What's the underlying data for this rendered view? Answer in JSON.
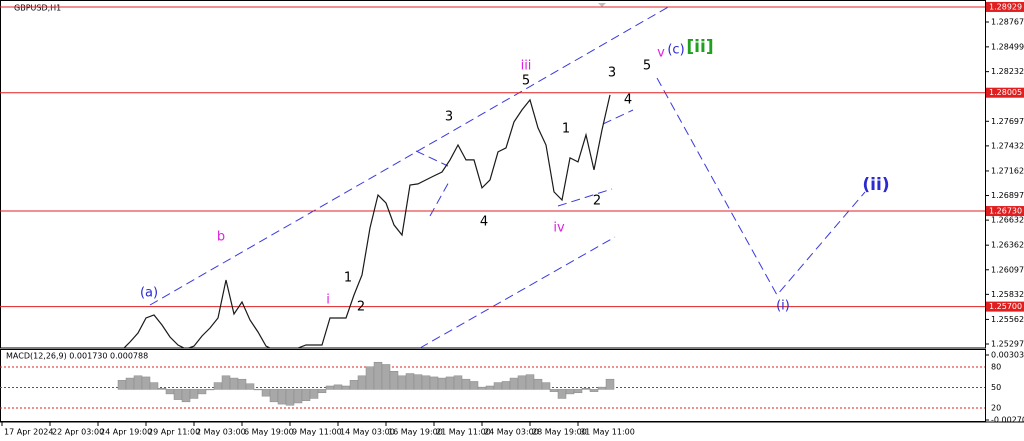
{
  "chart_data": [
    {
      "type": "line",
      "title": "GBPUSD,H1",
      "xlim": [
        -15.25,
        107.875
      ],
      "ylim": [
        1.25254,
        1.29004
      ],
      "xticks": [
        {
          "value": -15,
          "label": "17 Apr 2024"
        },
        {
          "value": -9,
          "label": "22 Apr 03:00"
        },
        {
          "value": -3,
          "label": "24 Apr 19:00"
        },
        {
          "value": 3,
          "label": "29 Apr 11:00"
        },
        {
          "value": 9,
          "label": "2 May 03:00"
        },
        {
          "value": 15,
          "label": "6 May 19:00"
        },
        {
          "value": 21,
          "label": "9 May 11:00"
        },
        {
          "value": 27,
          "label": "14 May 03:00"
        },
        {
          "value": 33,
          "label": "16 May 19:00"
        },
        {
          "value": 39,
          "label": "21 May 11:00"
        },
        {
          "value": 45,
          "label": "24 May 03:00"
        },
        {
          "value": 51,
          "label": "28 May 19:00"
        },
        {
          "value": 57,
          "label": "31 May 11:00"
        }
      ],
      "yticks": [
        1.25297,
        1.25562,
        1.25832,
        1.26097,
        1.26362,
        1.26632,
        1.26897,
        1.27162,
        1.27432,
        1.27697,
        1.28232,
        1.28499,
        1.28767
      ],
      "levels": [
        1.28929,
        1.28005,
        {
          "value": 1.2673,
          "label": "1.26730"
        },
        {
          "value": 1.257,
          "label": "1.25700"
        }
      ],
      "level_color": "#e02020",
      "color": "#1a1a1a",
      "values": [
        1.25232,
        1.25319,
        1.25416,
        1.25577,
        1.2561,
        1.25502,
        1.25373,
        1.25286,
        1.25243,
        1.25275,
        1.25383,
        1.25469,
        1.25577,
        1.25987,
        1.2562,
        1.2575,
        1.25556,
        1.25426,
        1.25275,
        1.25232,
        1.25232,
        1.25222,
        1.25254,
        1.25286,
        1.25286,
        1.25286,
        1.25577,
        1.25577,
        1.25577,
        1.25825,
        1.26041,
        1.26548,
        1.26903,
        1.26817,
        1.2658,
        1.26472,
        1.27011,
        1.27022,
        1.27065,
        1.27108,
        1.27151,
        1.27281,
        1.27442,
        1.27281,
        1.27281,
        1.26979,
        1.27065,
        1.27367,
        1.2741,
        1.2769,
        1.2782,
        1.27927,
        1.27626,
        1.27442,
        1.26936,
        1.26849,
        1.27302,
        1.27259,
        1.2755,
        1.27173,
        1.27604,
        1.27981
      ],
      "annotations": [
        {
          "text": "(a)",
          "color": "#2a2ad0"
        },
        {
          "text": "b",
          "color": "#e020e0"
        },
        {
          "text": "i",
          "color": "#e020e0"
        },
        {
          "text": "1",
          "color": "#000000"
        },
        {
          "text": "2",
          "color": "#000000"
        },
        {
          "text": "3",
          "color": "#000000"
        },
        {
          "text": "4",
          "color": "#000000"
        },
        {
          "text": "5",
          "color": "#000000"
        },
        {
          "text": "iii",
          "color": "#e020e0"
        },
        {
          "text": "iv",
          "color": "#e020e0"
        },
        {
          "text": "1",
          "color": "#000000"
        },
        {
          "text": "2",
          "color": "#000000"
        },
        {
          "text": "3",
          "color": "#000000"
        },
        {
          "text": "4",
          "color": "#000000"
        },
        {
          "text": "5",
          "color": "#000000"
        },
        {
          "text": "v",
          "color": "#e020e0"
        },
        {
          "text": "(c)",
          "color": "#2a2ad0"
        },
        {
          "text": "[ii]",
          "color": "#20a020"
        },
        {
          "text": "(i)",
          "color": "#2a2ad0"
        },
        {
          "text": "(ii)",
          "color": "#2a2ad0"
        }
      ]
    },
    {
      "type": "macd",
      "title": "MACD(12,26,9) 0.001730 0.000788",
      "ylim": [
        -0.002704,
        0.003037
      ],
      "yticks": [
        0.003037,
        -0.002704
      ],
      "y2lim": [
        0,
        100
      ],
      "y2ticks": [
        80,
        50,
        20
      ],
      "y2_color": "#e02020",
      "color": "#a8a8a8",
      "values": [
        0.0008,
        0.001,
        0.0012,
        0.0011,
        0.0006,
        0.0001,
        -0.0004,
        -0.0009,
        -0.0011,
        -0.0008,
        -0.0004,
        0.0,
        0.0006,
        0.0012,
        0.001,
        0.0009,
        0.0005,
        0.0,
        -0.0006,
        -0.0011,
        -0.0013,
        -0.0014,
        -0.0012,
        -0.001,
        -0.0008,
        -0.0003,
        0.0003,
        0.0004,
        0.0003,
        0.0008,
        0.0012,
        0.002,
        0.0024,
        0.0022,
        0.0016,
        0.0012,
        0.0014,
        0.0013,
        0.0012,
        0.0011,
        0.001,
        0.0011,
        0.0012,
        0.0009,
        0.0007,
        0.0002,
        0.0003,
        0.0006,
        0.0007,
        0.001,
        0.0012,
        0.0013,
        0.0009,
        0.0006,
        -0.0002,
        -0.0008,
        -0.0004,
        -0.0003,
        0.0001,
        -0.0002,
        0.0002,
        0.0009
      ]
    }
  ]
}
